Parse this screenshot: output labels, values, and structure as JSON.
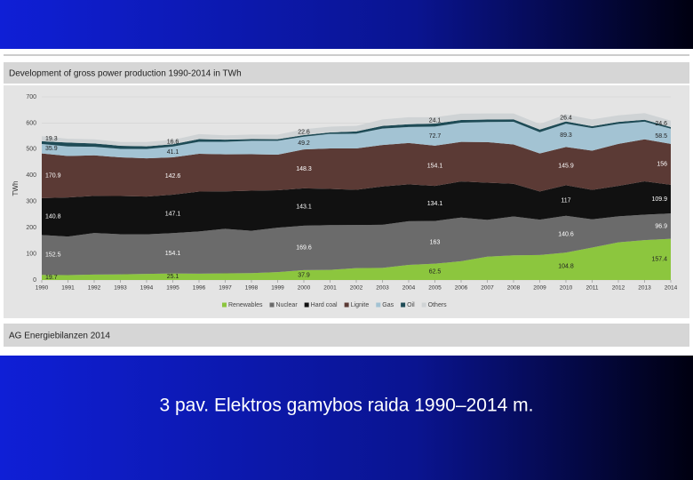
{
  "chart_data": {
    "type": "stacked_area",
    "title": "Development of gross power production 1990-2014 in TWh",
    "ylabel": "TWh",
    "source": "AG Energiebilanzen 2014",
    "x": [
      1990,
      1991,
      1992,
      1993,
      1994,
      1995,
      1996,
      1997,
      1998,
      1999,
      2000,
      2001,
      2002,
      2003,
      2004,
      2005,
      2006,
      2007,
      2008,
      2009,
      2010,
      2011,
      2012,
      2013,
      2014
    ],
    "xlim": [
      1990,
      2014
    ],
    "xticks": [
      1990,
      1991,
      1992,
      1993,
      1994,
      1995,
      1996,
      1997,
      1998,
      1999,
      2000,
      2001,
      2002,
      2003,
      2004,
      2005,
      2006,
      2007,
      2008,
      2009,
      2010,
      2011,
      2012,
      2013,
      2014
    ],
    "ylim": [
      0,
      700
    ],
    "yticks": [
      0,
      100,
      200,
      300,
      400,
      500,
      600,
      700
    ],
    "data_label_years": [
      1990,
      1995,
      2000,
      2005,
      2010,
      2014
    ],
    "series": [
      {
        "name": "Renewables",
        "color": "#8cc63e",
        "values": [
          19.7,
          18.6,
          20.9,
          21.5,
          23.5,
          25.1,
          24.0,
          25.4,
          26.5,
          30.0,
          37.9,
          38.5,
          45.5,
          46.1,
          57.7,
          62.5,
          71.6,
          89.4,
          94.3,
          95.6,
          104.8,
          124.0,
          143.8,
          152.4,
          157.4
        ]
      },
      {
        "name": "Nuclear",
        "color": "#6b6b6b",
        "values": [
          152.5,
          147.4,
          158.8,
          153.5,
          151.2,
          154.1,
          161.6,
          170.3,
          161.6,
          170.0,
          169.6,
          171.3,
          164.8,
          165.1,
          167.1,
          163.0,
          167.3,
          140.5,
          148.8,
          134.9,
          140.6,
          108.0,
          99.5,
          97.3,
          96.9
        ]
      },
      {
        "name": "Hard coal",
        "color": "#111111",
        "values": [
          140.8,
          149.8,
          141.9,
          146.2,
          144.1,
          147.1,
          152.7,
          143.1,
          153.4,
          143.1,
          143.1,
          138.4,
          134.6,
          146.5,
          140.8,
          134.1,
          137.9,
          142.0,
          124.6,
          107.9,
          117.0,
          112.4,
          116.4,
          127.3,
          109.9
        ]
      },
      {
        "name": "Lignite",
        "color": "#5b3a35",
        "values": [
          170.9,
          158.3,
          154.8,
          147.6,
          146.1,
          142.6,
          144.3,
          141.7,
          139.4,
          136.0,
          148.3,
          154.8,
          158.0,
          158.2,
          158.0,
          154.1,
          151.1,
          155.1,
          150.6,
          145.6,
          145.9,
          150.1,
          160.7,
          160.9,
          156.0
        ]
      },
      {
        "name": "Gas",
        "color": "#a3c3d3",
        "values": [
          35.9,
          36.6,
          33.0,
          32.6,
          35.9,
          41.1,
          45.9,
          48.0,
          51.4,
          53.3,
          49.2,
          55.5,
          56.3,
          62.9,
          61.4,
          72.7,
          73.4,
          76.9,
          86.7,
          80.9,
          89.3,
          86.1,
          76.4,
          67.5,
          58.5
        ]
      },
      {
        "name": "Oil",
        "color": "#1e4b56",
        "values": [
          10.8,
          14.8,
          12.8,
          11.9,
          10.2,
          9.1,
          10.0,
          8.1,
          6.3,
          5.7,
          5.9,
          5.4,
          8.7,
          10.3,
          10.3,
          11.6,
          10.5,
          9.6,
          9.2,
          10.1,
          8.7,
          7.2,
          7.6,
          7.2,
          5.7
        ]
      },
      {
        "name": "Others",
        "color": "#cfd3d5",
        "values": [
          19.3,
          14.4,
          15.4,
          14.2,
          16.6,
          16.6,
          19.3,
          16.3,
          17.4,
          17.6,
          22.6,
          22.4,
          21.3,
          24.6,
          26.8,
          24.1,
          24.0,
          23.3,
          22.4,
          21.3,
          26.4,
          25.8,
          25.1,
          25.3,
          24.6
        ]
      }
    ]
  },
  "slide": {
    "caption": "3 pav. Elektros gamybos raida 1990–2014 m."
  }
}
